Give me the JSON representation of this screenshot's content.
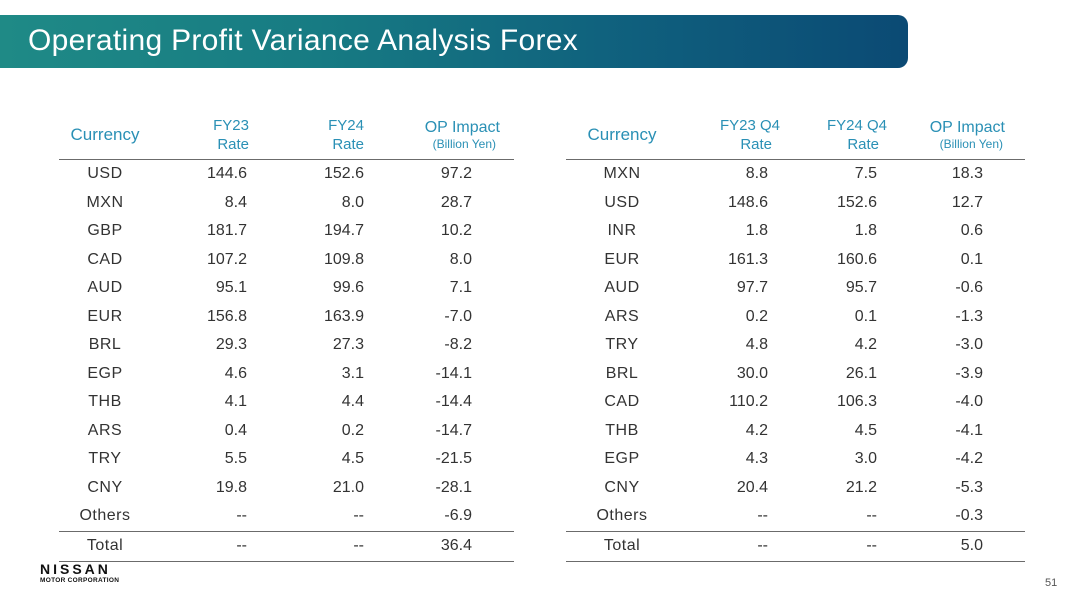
{
  "title": "Operating Profit Variance Analysis Forex",
  "left": {
    "headers": {
      "currency": "Currency",
      "rate1_l1": "FY23",
      "rate1_l2": "Rate",
      "rate2_l1": "FY24",
      "rate2_l2": "Rate",
      "impact_l1": "OP Impact",
      "impact_l2": "(Billion Yen)"
    },
    "rows": [
      {
        "cur": "USD",
        "r1": "144.6",
        "r2": "152.6",
        "op": "97.2"
      },
      {
        "cur": "MXN",
        "r1": "8.4",
        "r2": "8.0",
        "op": "28.7"
      },
      {
        "cur": "GBP",
        "r1": "181.7",
        "r2": "194.7",
        "op": "10.2"
      },
      {
        "cur": "CAD",
        "r1": "107.2",
        "r2": "109.8",
        "op": "8.0"
      },
      {
        "cur": "AUD",
        "r1": "95.1",
        "r2": "99.6",
        "op": "7.1"
      },
      {
        "cur": "EUR",
        "r1": "156.8",
        "r2": "163.9",
        "op": "-7.0"
      },
      {
        "cur": "BRL",
        "r1": "29.3",
        "r2": "27.3",
        "op": "-8.2"
      },
      {
        "cur": "EGP",
        "r1": "4.6",
        "r2": "3.1",
        "op": "-14.1"
      },
      {
        "cur": "THB",
        "r1": "4.1",
        "r2": "4.4",
        "op": "-14.4"
      },
      {
        "cur": "ARS",
        "r1": "0.4",
        "r2": "0.2",
        "op": "-14.7"
      },
      {
        "cur": "TRY",
        "r1": "5.5",
        "r2": "4.5",
        "op": "-21.5"
      },
      {
        "cur": "CNY",
        "r1": "19.8",
        "r2": "21.0",
        "op": "-28.1"
      },
      {
        "cur": "Others",
        "r1": "--",
        "r2": "--",
        "op": "-6.9"
      }
    ],
    "total": {
      "cur": "Total",
      "r1": "--",
      "r2": "--",
      "op": "36.4"
    }
  },
  "right": {
    "headers": {
      "currency": "Currency",
      "rate1_l1": "FY23 Q4",
      "rate1_l2": "Rate",
      "rate2_l1": "FY24 Q4",
      "rate2_l2": "Rate",
      "impact_l1": "OP Impact",
      "impact_l2": "(Billion Yen)"
    },
    "rows": [
      {
        "cur": "MXN",
        "r1": "8.8",
        "r2": "7.5",
        "op": "18.3"
      },
      {
        "cur": "USD",
        "r1": "148.6",
        "r2": "152.6",
        "op": "12.7"
      },
      {
        "cur": "INR",
        "r1": "1.8",
        "r2": "1.8",
        "op": "0.6"
      },
      {
        "cur": "EUR",
        "r1": "161.3",
        "r2": "160.6",
        "op": "0.1"
      },
      {
        "cur": "AUD",
        "r1": "97.7",
        "r2": "95.7",
        "op": "-0.6"
      },
      {
        "cur": "ARS",
        "r1": "0.2",
        "r2": "0.1",
        "op": "-1.3"
      },
      {
        "cur": "TRY",
        "r1": "4.8",
        "r2": "4.2",
        "op": "-3.0"
      },
      {
        "cur": "BRL",
        "r1": "30.0",
        "r2": "26.1",
        "op": "-3.9"
      },
      {
        "cur": "CAD",
        "r1": "110.2",
        "r2": "106.3",
        "op": "-4.0"
      },
      {
        "cur": "THB",
        "r1": "4.2",
        "r2": "4.5",
        "op": "-4.1"
      },
      {
        "cur": "EGP",
        "r1": "4.3",
        "r2": "3.0",
        "op": "-4.2"
      },
      {
        "cur": "CNY",
        "r1": "20.4",
        "r2": "21.2",
        "op": "-5.3"
      },
      {
        "cur": "Others",
        "r1": "--",
        "r2": "--",
        "op": "-0.3"
      }
    ],
    "total": {
      "cur": "Total",
      "r1": "--",
      "r2": "--",
      "op": "5.0"
    }
  },
  "logo": {
    "name": "NISSAN",
    "sub": "MOTOR CORPORATION"
  },
  "page_number": "51",
  "colors": {
    "header_text": "#2a90b5",
    "banner_start": "#1f8a86",
    "banner_end": "#0b4a74"
  }
}
